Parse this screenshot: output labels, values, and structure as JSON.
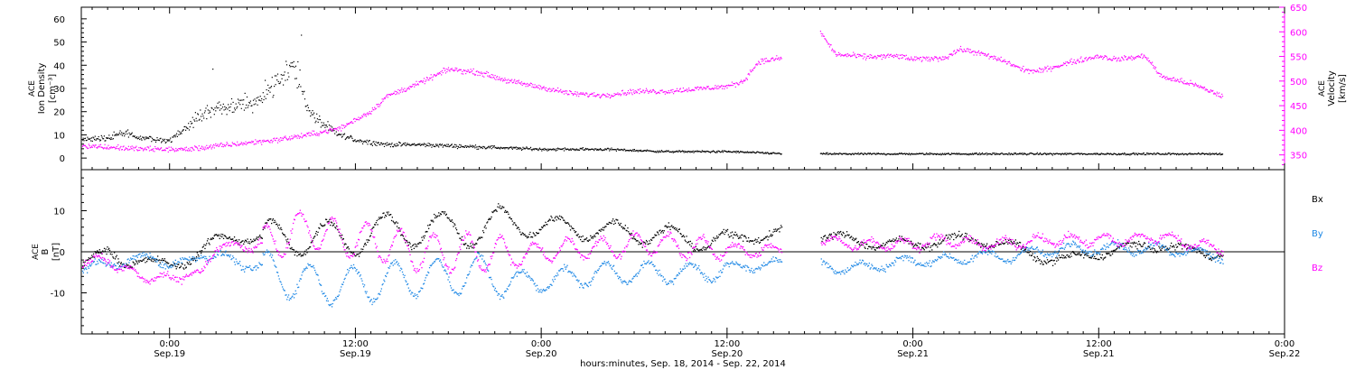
{
  "chart_data": [
    {
      "type": "scatter",
      "panel": "top",
      "ylabel_left": [
        "ACE",
        "Ion Density",
        "[cm⁻³]"
      ],
      "ylabel_right": [
        "ACE",
        "Velocity",
        "[km/s]"
      ],
      "ylim_left": [
        -5,
        65
      ],
      "yticks_left": [
        0,
        10,
        20,
        30,
        40,
        50,
        60
      ],
      "ylim_right": [
        320,
        650
      ],
      "yticks_right": [
        350,
        400,
        450,
        500,
        550,
        600,
        650
      ],
      "axis_colors": {
        "left": "#000000",
        "right": "#ff00ff"
      },
      "x_units": "hours since Sep.18 00:00",
      "series": [
        {
          "key": "ion-density",
          "axis": "left",
          "color": "#000000",
          "keypoints": [
            [
              18.3,
              8
            ],
            [
              20,
              9
            ],
            [
              21,
              11
            ],
            [
              22,
              9
            ],
            [
              23,
              8
            ],
            [
              24,
              8
            ],
            [
              25,
              13
            ],
            [
              26,
              19
            ],
            [
              27,
              21
            ],
            [
              28,
              22
            ],
            [
              29,
              24
            ],
            [
              30,
              26
            ],
            [
              31,
              35
            ],
            [
              32,
              40
            ],
            [
              33,
              20
            ],
            [
              34,
              14
            ],
            [
              35,
              10
            ],
            [
              36,
              8
            ],
            [
              38,
              6
            ],
            [
              40,
              6
            ],
            [
              44,
              5
            ],
            [
              48,
              4
            ],
            [
              52,
              4
            ],
            [
              56,
              3
            ],
            [
              60,
              3
            ],
            [
              64,
              2
            ],
            [
              72,
              2
            ],
            [
              78,
              2
            ],
            [
              84,
              2
            ],
            [
              88,
              2
            ]
          ],
          "gaps": [
            [
              63.5,
              66
            ]
          ]
        },
        {
          "key": "velocity",
          "axis": "right",
          "color": "#ff00ff",
          "keypoints": [
            [
              18.3,
              370
            ],
            [
              22,
              363
            ],
            [
              25,
              362
            ],
            [
              28,
              372
            ],
            [
              31,
              382
            ],
            [
              33,
              392
            ],
            [
              35,
              405
            ],
            [
              37,
              440
            ],
            [
              38,
              470
            ],
            [
              40,
              495
            ],
            [
              42,
              525
            ],
            [
              44,
              518
            ],
            [
              46,
              500
            ],
            [
              48,
              488
            ],
            [
              50,
              475
            ],
            [
              52,
              472
            ],
            [
              54,
              480
            ],
            [
              56,
              480
            ],
            [
              58,
              485
            ],
            [
              60,
              490
            ],
            [
              61,
              500
            ],
            [
              62,
              540
            ],
            [
              63,
              545
            ],
            [
              63.5,
              548
            ],
            [
              66,
              600
            ],
            [
              67,
              555
            ],
            [
              69,
              550
            ],
            [
              71,
              552
            ],
            [
              72,
              545
            ],
            [
              74,
              548
            ],
            [
              75,
              565
            ],
            [
              76,
              560
            ],
            [
              78,
              540
            ],
            [
              79,
              525
            ],
            [
              80,
              520
            ],
            [
              82,
              538
            ],
            [
              84,
              552
            ],
            [
              85,
              545
            ],
            [
              86,
              548
            ],
            [
              87,
              552
            ],
            [
              88,
              510
            ],
            [
              90,
              495
            ],
            [
              92,
              470
            ]
          ],
          "gaps": [
            [
              63.5,
              66
            ]
          ]
        }
      ]
    },
    {
      "type": "scatter",
      "panel": "bottom",
      "ylabel_left": [
        "ACE",
        "B",
        "[nT]"
      ],
      "ylim": [
        -20,
        20
      ],
      "yticks": [
        -10,
        0,
        10
      ],
      "zero_line": true,
      "x_units": "hours since Sep.18 00:00",
      "legend_labels": [
        "Bx",
        "By",
        "Bz"
      ],
      "series": [
        {
          "key": "bx",
          "color": "#000000",
          "keypoints": [
            [
              18.3,
              -3
            ],
            [
              20,
              0
            ],
            [
              21,
              -2
            ],
            [
              22,
              -2
            ],
            [
              23,
              -3
            ],
            [
              24,
              -3
            ],
            [
              25,
              -2
            ],
            [
              26,
              0
            ],
            [
              27,
              3
            ],
            [
              28,
              4
            ],
            [
              30,
              3
            ],
            [
              32,
              4
            ],
            [
              34,
              3
            ],
            [
              36,
              4
            ],
            [
              38,
              5
            ],
            [
              40,
              6
            ],
            [
              42,
              5
            ],
            [
              44,
              6
            ],
            [
              46,
              7
            ],
            [
              48,
              6
            ],
            [
              50,
              6
            ],
            [
              52,
              5
            ],
            [
              54,
              5
            ],
            [
              56,
              4
            ],
            [
              58,
              3
            ],
            [
              60,
              3
            ],
            [
              62,
              4
            ],
            [
              63.5,
              5
            ],
            [
              66,
              4
            ],
            [
              68,
              3
            ],
            [
              70,
              2
            ],
            [
              72,
              2
            ],
            [
              74,
              3
            ],
            [
              76,
              3
            ],
            [
              78,
              2
            ],
            [
              80,
              -1
            ],
            [
              82,
              -2
            ],
            [
              84,
              0
            ],
            [
              86,
              1
            ],
            [
              88,
              2
            ],
            [
              90,
              0
            ],
            [
              92,
              0
            ]
          ],
          "gaps": [
            [
              63.5,
              66
            ]
          ]
        },
        {
          "key": "by",
          "color": "#1e88e5",
          "keypoints": [
            [
              18.3,
              -4
            ],
            [
              20,
              -3
            ],
            [
              21,
              -2
            ],
            [
              22,
              -2
            ],
            [
              23,
              -1
            ],
            [
              24,
              -3
            ],
            [
              25,
              -3
            ],
            [
              26,
              0
            ],
            [
              27,
              -1
            ],
            [
              28,
              -2
            ],
            [
              30,
              -4
            ],
            [
              32,
              -7
            ],
            [
              34,
              -8
            ],
            [
              36,
              -8
            ],
            [
              38,
              -7
            ],
            [
              40,
              -6
            ],
            [
              42,
              -6
            ],
            [
              44,
              -5
            ],
            [
              46,
              -7
            ],
            [
              48,
              -7
            ],
            [
              50,
              -6
            ],
            [
              52,
              -5
            ],
            [
              54,
              -5
            ],
            [
              56,
              -5
            ],
            [
              58,
              -5
            ],
            [
              60,
              -4
            ],
            [
              62,
              -3
            ],
            [
              63.5,
              -3
            ],
            [
              66,
              -3
            ],
            [
              68,
              -4
            ],
            [
              70,
              -3
            ],
            [
              72,
              -2
            ],
            [
              74,
              -2
            ],
            [
              76,
              -1
            ],
            [
              78,
              -1
            ],
            [
              80,
              0
            ],
            [
              82,
              1
            ],
            [
              84,
              1
            ],
            [
              86,
              1
            ],
            [
              88,
              1
            ],
            [
              90,
              0
            ],
            [
              92,
              -1
            ]
          ],
          "gaps": [
            [
              63.5,
              66
            ]
          ]
        },
        {
          "key": "bz",
          "color": "#ff00ff",
          "keypoints": [
            [
              18.3,
              -2
            ],
            [
              20,
              -2
            ],
            [
              21,
              -4
            ],
            [
              22,
              -6
            ],
            [
              23,
              -6
            ],
            [
              24,
              -7
            ],
            [
              25,
              -5
            ],
            [
              26,
              -6
            ],
            [
              27,
              2
            ],
            [
              28,
              1
            ],
            [
              30,
              2
            ],
            [
              31,
              3
            ],
            [
              32,
              5
            ],
            [
              33,
              6
            ],
            [
              34,
              4
            ],
            [
              36,
              3
            ],
            [
              38,
              2
            ],
            [
              40,
              0
            ],
            [
              42,
              0
            ],
            [
              44,
              0
            ],
            [
              46,
              -1
            ],
            [
              48,
              0
            ],
            [
              50,
              1
            ],
            [
              52,
              1
            ],
            [
              54,
              2
            ],
            [
              56,
              2
            ],
            [
              58,
              1
            ],
            [
              60,
              1
            ],
            [
              62,
              0
            ],
            [
              63.5,
              1
            ],
            [
              66,
              3
            ],
            [
              68,
              2
            ],
            [
              70,
              2
            ],
            [
              72,
              2
            ],
            [
              74,
              3
            ],
            [
              76,
              2
            ],
            [
              78,
              2
            ],
            [
              80,
              3
            ],
            [
              82,
              3
            ],
            [
              84,
              3
            ],
            [
              86,
              3
            ],
            [
              88,
              4
            ],
            [
              90,
              2
            ],
            [
              92,
              1
            ]
          ],
          "gaps": [
            [
              63.5,
              66
            ]
          ]
        }
      ]
    }
  ],
  "x_axis": {
    "xlim_hours": [
      18.3,
      96
    ],
    "ticks": [
      {
        "hours": 24,
        "time": "0:00",
        "date": "Sep.19"
      },
      {
        "hours": 36,
        "time": "12:00",
        "date": "Sep.19"
      },
      {
        "hours": 48,
        "time": "0:00",
        "date": "Sep.20"
      },
      {
        "hours": 60,
        "time": "12:00",
        "date": "Sep.20"
      },
      {
        "hours": 72,
        "time": "0:00",
        "date": "Sep.21"
      },
      {
        "hours": 84,
        "time": "12:00",
        "date": "Sep.21"
      },
      {
        "hours": 96,
        "time": "0:00",
        "date": "Sep.22"
      }
    ],
    "xlabel": "hours:minutes, Sep. 18, 2014 - Sep. 22, 2014"
  }
}
